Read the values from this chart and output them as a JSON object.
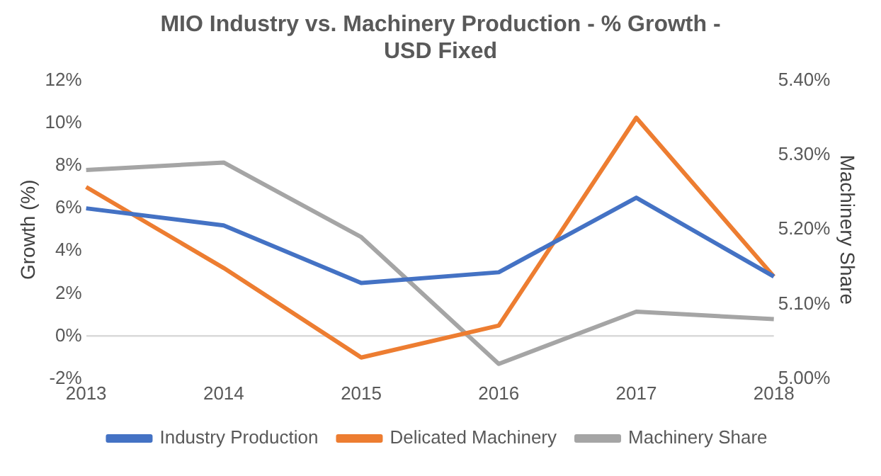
{
  "chart_data": {
    "type": "line",
    "title": "MIO Industry vs. Machinery Production - % Growth - USD Fixed",
    "ylabel": "Growth (%)",
    "y2label": "Machinery Share",
    "categories": [
      "2013",
      "2014",
      "2015",
      "2016",
      "2017",
      "2018"
    ],
    "series": [
      {
        "name": "Industry Production",
        "color": "#4472c4",
        "values": [
          6.0,
          5.2,
          2.5,
          3.0,
          6.5,
          2.8
        ]
      },
      {
        "name": "Delicated Machinery",
        "color": "#ed7d31",
        "values": [
          7.0,
          3.2,
          -1.0,
          0.5,
          10.25,
          2.8
        ]
      },
      {
        "name": "Machinery Share",
        "color": "#a5a5a5",
        "axis": "y2",
        "values": [
          5.28,
          5.29,
          5.19,
          5.02,
          5.09,
          5.08
        ]
      }
    ],
    "ylim": [
      -2,
      12
    ],
    "yticks": [
      {
        "value": -2,
        "label": "-2%"
      },
      {
        "value": 0,
        "label": "0%"
      },
      {
        "value": 2,
        "label": "2%"
      },
      {
        "value": 4,
        "label": "4%"
      },
      {
        "value": 6,
        "label": "6%"
      },
      {
        "value": 8,
        "label": "8%"
      },
      {
        "value": 10,
        "label": "10%"
      },
      {
        "value": 12,
        "label": "12%"
      }
    ],
    "y2lim": [
      5.0,
      5.4
    ],
    "y2ticks": [
      {
        "value": 5.0,
        "label": "5.00%"
      },
      {
        "value": 5.1,
        "label": "5.10%"
      },
      {
        "value": 5.2,
        "label": "5.20%"
      },
      {
        "value": 5.3,
        "label": "5.30%"
      },
      {
        "value": 5.4,
        "label": "5.40%"
      }
    ],
    "grid": false,
    "legend": "bottom",
    "marker": "none",
    "line_style": "solid"
  }
}
